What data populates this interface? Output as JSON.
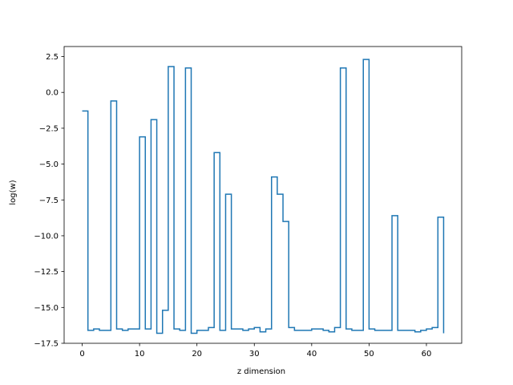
{
  "chart_data": {
    "type": "line",
    "drawstyle": "steps-post",
    "xlabel": "z dimension",
    "ylabel": "log(w)",
    "xlim": [
      -3.15,
      66.15
    ],
    "ylim": [
      -17.5,
      3.2
    ],
    "xticks": [
      0,
      10,
      20,
      30,
      40,
      50,
      60
    ],
    "yticks": [
      -17.5,
      -15.0,
      -12.5,
      -10.0,
      -7.5,
      -5.0,
      -2.5,
      0.0,
      2.5
    ],
    "ytick_labels": [
      "−17.5",
      "−15.0",
      "−12.5",
      "−10.0",
      "−7.5",
      "−5.0",
      "−2.5",
      "0.0",
      "2.5"
    ],
    "grid": false,
    "color": "#1f77b4",
    "series": [
      {
        "x": [
          0,
          1,
          2,
          3,
          4,
          5,
          6,
          7,
          8,
          9,
          10,
          11,
          12,
          13,
          14,
          15,
          16,
          17,
          18,
          19,
          20,
          21,
          22,
          23,
          24,
          25,
          26,
          27,
          28,
          29,
          30,
          31,
          32,
          33,
          34,
          35,
          36,
          37,
          38,
          39,
          40,
          41,
          42,
          43,
          44,
          45,
          46,
          47,
          48,
          49,
          50,
          51,
          52,
          53,
          54,
          55,
          56,
          57,
          58,
          59,
          60,
          61,
          62,
          63
        ],
        "values": [
          -1.3,
          -16.6,
          -16.5,
          -16.6,
          -16.6,
          -0.6,
          -16.5,
          -16.6,
          -16.5,
          -16.5,
          -3.1,
          -16.5,
          -1.9,
          -16.8,
          -15.2,
          1.8,
          -16.5,
          -16.6,
          1.7,
          -16.8,
          -16.6,
          -16.6,
          -16.4,
          -4.2,
          -16.6,
          -7.1,
          -16.5,
          -16.5,
          -16.6,
          -16.5,
          -16.4,
          -16.7,
          -16.5,
          -5.9,
          -7.1,
          -9.0,
          -16.4,
          -16.6,
          -16.6,
          -16.6,
          -16.5,
          -16.5,
          -16.6,
          -16.7,
          -16.4,
          1.7,
          -16.5,
          -16.6,
          -16.6,
          2.3,
          -16.5,
          -16.6,
          -16.6,
          -16.6,
          -8.6,
          -16.6,
          -16.6,
          -16.6,
          -16.7,
          -16.6,
          -16.5,
          -16.4,
          -8.7,
          -16.8
        ]
      }
    ]
  }
}
